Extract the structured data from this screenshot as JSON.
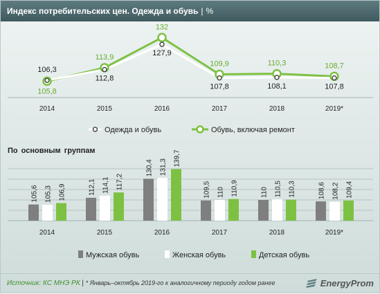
{
  "header": {
    "title": "Индекс потребительских цен. Одежда и обувь",
    "separator": "|",
    "unit": "%"
  },
  "subtitle": "По основным группам",
  "footer": {
    "source": "Источник: КС МНЭ РК",
    "separator": "|",
    "note": "* Январь–октябрь 2019-го к аналогичному периоду годом ранее"
  },
  "logo": {
    "text": "EnergyProm",
    "icon": "energyprom-logo-icon"
  },
  "colors": {
    "dark_series": "#5a5a5a",
    "green": "#7dc142",
    "green_label": "#6aaa30",
    "gray_bar": "#7f7f7f",
    "white_bar": "#ffffff",
    "header_bg": "#4d6a6f"
  },
  "chart_data": [
    {
      "type": "line",
      "categories": [
        "2014",
        "2015",
        "2016",
        "2017",
        "2018",
        "2019*"
      ],
      "series": [
        {
          "name": "Одежда и обувь",
          "values": [
            106.3,
            112.8,
            127.9,
            107.8,
            108.1,
            107.8
          ],
          "labels": [
            "106,3",
            "112,8",
            "127,9",
            "107,8",
            "108,1",
            "107,8"
          ],
          "color": "#ffffff"
        },
        {
          "name": "Обувь, включая ремонт",
          "values": [
            105.8,
            113.9,
            132,
            109.9,
            110.3,
            108.7
          ],
          "labels": [
            "105,8",
            "113,9",
            "132",
            "109,9",
            "110,3",
            "108,7"
          ],
          "color": "#7dc142"
        }
      ],
      "ylim": [
        96,
        140
      ],
      "grid": false,
      "legend": "bottom"
    },
    {
      "type": "bar",
      "title": "По основным группам",
      "categories": [
        "2014",
        "2015",
        "2016",
        "2017",
        "2018",
        "2019*"
      ],
      "series": [
        {
          "name": "Мужская обувь",
          "values": [
            105.6,
            112.1,
            130.4,
            109.5,
            110,
            108.6
          ],
          "labels": [
            "105,6",
            "112,1",
            "130,4",
            "109,5",
            "110",
            "108,6"
          ],
          "color": "#7f7f7f"
        },
        {
          "name": "Женская обувь",
          "values": [
            105.3,
            114.1,
            131.3,
            110,
            110.5,
            108.2
          ],
          "labels": [
            "105,3",
            "114,1",
            "131,3",
            "110",
            "110,5",
            "108,2"
          ],
          "color": "#ffffff"
        },
        {
          "name": "Детская обувь",
          "values": [
            106.9,
            117.2,
            139.7,
            110.9,
            110.3,
            109.4
          ],
          "labels": [
            "106,9",
            "117,2",
            "139,7",
            "110,9",
            "110,3",
            "109,4"
          ],
          "color": "#7dc142"
        }
      ],
      "ylim": [
        90,
        140
      ],
      "grid": true,
      "legend": "bottom"
    }
  ]
}
